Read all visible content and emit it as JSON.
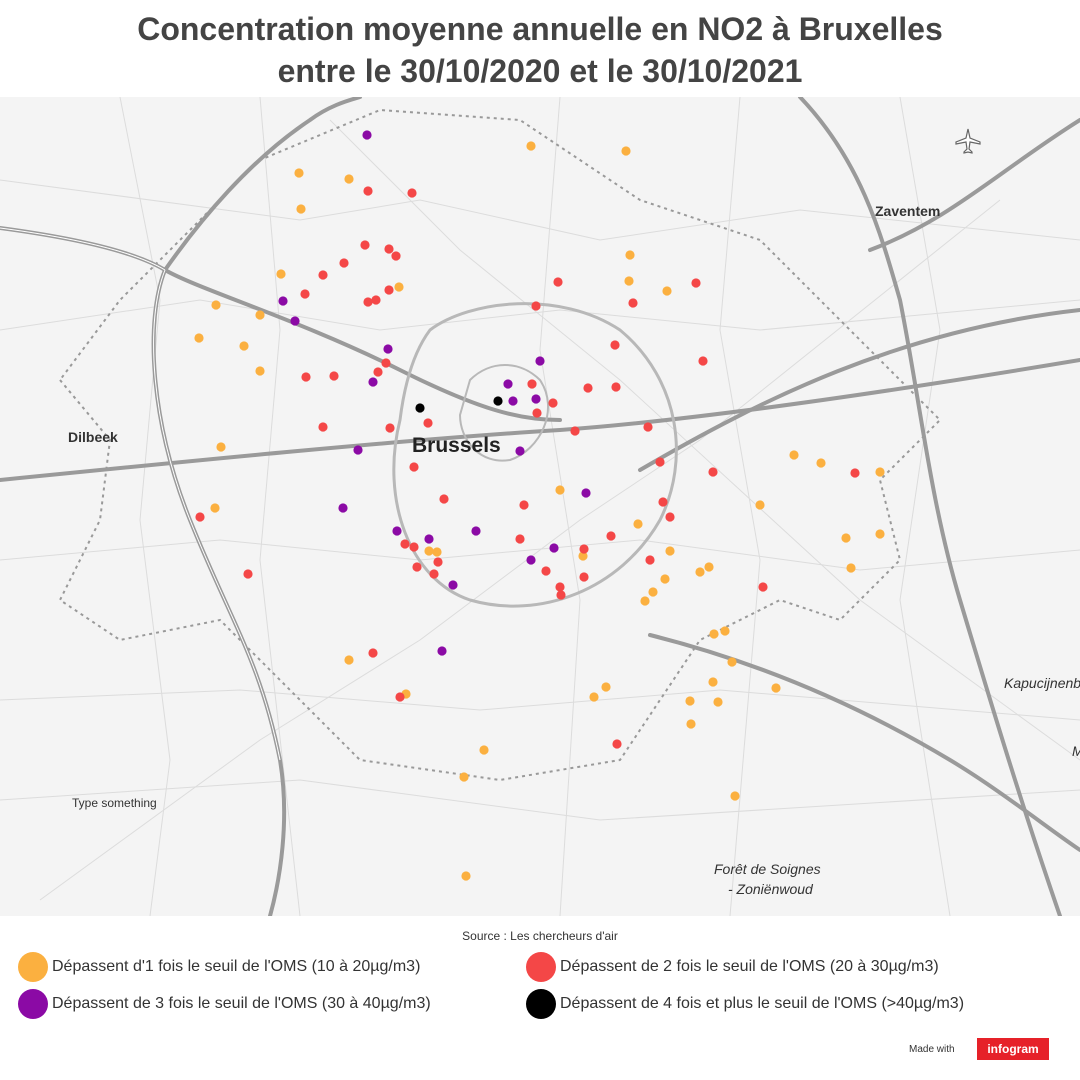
{
  "title": {
    "line1": "Concentration moyenne annuelle en NO2 à Bruxelles",
    "line2": "entre le 30/10/2020 et le 30/10/2021"
  },
  "map": {
    "labels": {
      "brussels": "Brussels",
      "zaventem": "Zaventem",
      "dilbeek": "Dilbeek",
      "kapucijnenbos": "Kapucijnenb",
      "m_fragment": "M",
      "foret_line1": "Forêt de Soignes",
      "foret_line2": "- Zoniënwoud",
      "type_something": "Type something"
    },
    "airport_icon": "airplane-icon"
  },
  "colors": {
    "orange": "#fbb040",
    "red": "#f44747",
    "purple": "#8b0aa5",
    "black": "#000000"
  },
  "source": "Source : Les chercheurs d'air",
  "legend": [
    {
      "label": "Dépassent d'1 fois le seuil de l'OMS (10 à 20µg/m3)",
      "color": "#fbb040"
    },
    {
      "label": "Dépassent de 2 fois le seuil de l'OMS (20 à 30µg/m3)",
      "color": "#f44747"
    },
    {
      "label": "Dépassent de 3 fois le seuil de l'OMS (30 à 40µg/m3)",
      "color": "#8b0aa5"
    },
    {
      "label": "Dépassent de 4 fois et plus le seuil de l'OMS (>40µg/m3)",
      "color": "#000000"
    }
  ],
  "footer": {
    "made_with": "Made with",
    "brand": "infogram"
  }
}
